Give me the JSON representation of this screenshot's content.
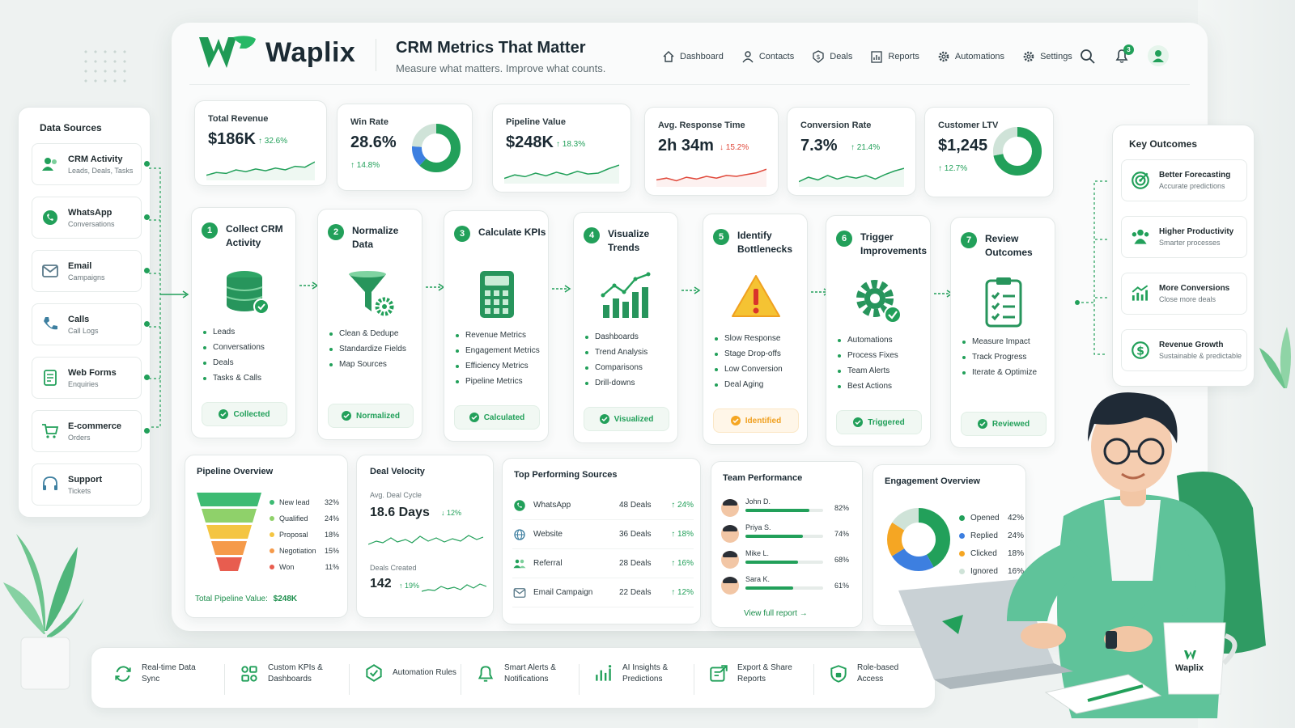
{
  "colors": {
    "accent": "#22a05a",
    "down": "#e0493b",
    "warn": "#f5a623"
  },
  "header": {
    "brand": "Waplix",
    "title": "CRM Metrics That Matter",
    "subtitle": "Measure what matters. Improve what counts.",
    "nav": [
      {
        "label": "Dashboard",
        "icon": "home-icon"
      },
      {
        "label": "Contacts",
        "icon": "user-icon"
      },
      {
        "label": "Deals",
        "icon": "dollar-icon"
      },
      {
        "label": "Reports",
        "icon": "report-icon"
      },
      {
        "label": "Automations",
        "icon": "gear-icon"
      },
      {
        "label": "Settings",
        "icon": "settings-icon"
      }
    ],
    "notification_count": "3"
  },
  "data_sources": {
    "title": "Data Sources",
    "items": [
      {
        "title": "CRM Activity",
        "sub": "Leads, Deals, Tasks",
        "icon": "people-icon"
      },
      {
        "title": "WhatsApp",
        "sub": "Conversations",
        "icon": "whatsapp-icon"
      },
      {
        "title": "Email",
        "sub": "Campaigns",
        "icon": "mail-icon"
      },
      {
        "title": "Calls",
        "sub": "Call Logs",
        "icon": "phone-icon"
      },
      {
        "title": "Web Forms",
        "sub": "Enquiries",
        "icon": "form-icon"
      },
      {
        "title": "E-commerce",
        "sub": "Orders",
        "icon": "cart-icon"
      },
      {
        "title": "Support",
        "sub": "Tickets",
        "icon": "headset-icon"
      }
    ]
  },
  "kpis": [
    {
      "label": "Total Revenue",
      "value": "$186K",
      "change": "↑ 32.6%",
      "dir": "up",
      "chart": "sparkline"
    },
    {
      "label": "Win Rate",
      "value": "28.6%",
      "change": "↑ 14.8%",
      "dir": "up",
      "chart": "donut",
      "donut": [
        0.62,
        0.14,
        0.24
      ]
    },
    {
      "label": "Pipeline Value",
      "value": "$248K",
      "change": "↑ 18.3%",
      "dir": "up",
      "chart": "sparkline"
    },
    {
      "label": "Avg. Response Time",
      "value": "2h 34m",
      "change": "↓ 15.2%",
      "dir": "down",
      "chart": "sparkline"
    },
    {
      "label": "Conversion Rate",
      "value": "7.3%",
      "change": "↑ 21.4%",
      "dir": "up",
      "chart": "sparkline"
    },
    {
      "label": "Customer LTV",
      "value": "$1,245",
      "change": "↑ 12.7%",
      "dir": "up",
      "chart": "donut",
      "donut": [
        0.72,
        0.0,
        0.28
      ]
    }
  ],
  "steps": [
    {
      "num": "1",
      "title": "Collect CRM Activity",
      "icon": "database-icon",
      "items": [
        "Leads",
        "Conversations",
        "Deals",
        "Tasks & Calls"
      ],
      "badge": "Collected",
      "warn": false
    },
    {
      "num": "2",
      "title": "Normalize Data",
      "icon": "funnel-gear-icon",
      "items": [
        "Clean & Dedupe",
        "Standardize Fields",
        "Map Sources"
      ],
      "badge": "Normalized",
      "warn": false
    },
    {
      "num": "3",
      "title": "Calculate KPIs",
      "icon": "calculator-icon",
      "items": [
        "Revenue Metrics",
        "Engagement Metrics",
        "Efficiency Metrics",
        "Pipeline Metrics"
      ],
      "badge": "Calculated",
      "warn": false
    },
    {
      "num": "4",
      "title": "Visualize Trends",
      "icon": "trend-chart-icon",
      "items": [
        "Dashboards",
        "Trend Analysis",
        "Comparisons",
        "Drill-downs"
      ],
      "badge": "Visualized",
      "warn": false
    },
    {
      "num": "5",
      "title": "Identify Bottlenecks",
      "icon": "warning-icon",
      "items": [
        "Slow Response",
        "Stage Drop-offs",
        "Low Conversion",
        "Deal Aging"
      ],
      "badge": "Identified",
      "warn": true
    },
    {
      "num": "6",
      "title": "Trigger Improvements",
      "icon": "gear-check-icon",
      "items": [
        "Automations",
        "Process Fixes",
        "Team Alerts",
        "Best Actions"
      ],
      "badge": "Triggered",
      "warn": false
    },
    {
      "num": "7",
      "title": "Review Outcomes",
      "icon": "clipboard-icon",
      "items": [
        "Measure Impact",
        "Track Progress",
        "Iterate & Optimize"
      ],
      "badge": "Reviewed",
      "warn": false
    }
  ],
  "outcomes": {
    "title": "Key Outcomes",
    "items": [
      {
        "title": "Better Forecasting",
        "sub": "Accurate predictions",
        "icon": "target-icon"
      },
      {
        "title": "Higher Productivity",
        "sub": "Smarter processes",
        "icon": "team-icon"
      },
      {
        "title": "More Conversions",
        "sub": "Close more deals",
        "icon": "growth-icon"
      },
      {
        "title": "Revenue Growth",
        "sub": "Sustainable & predictable",
        "icon": "dollar-coin-icon"
      }
    ]
  },
  "pipeline": {
    "title": "Pipeline Overview",
    "stages": [
      {
        "label": "New lead",
        "pct": "32%",
        "color": "#3dbb73"
      },
      {
        "label": "Qualified",
        "pct": "24%",
        "color": "#8fd16a"
      },
      {
        "label": "Proposal",
        "pct": "18%",
        "color": "#f4c542"
      },
      {
        "label": "Negotiation",
        "pct": "15%",
        "color": "#f59a4a"
      },
      {
        "label": "Won",
        "pct": "11%",
        "color": "#e85d4f"
      }
    ],
    "total_label": "Total Pipeline Value:",
    "total": "$248K"
  },
  "velocity": {
    "title": "Deal Velocity",
    "cycle_label": "Avg. Deal Cycle",
    "cycle": "18.6 Days",
    "cycle_change": "↓ 12%",
    "created_label": "Deals Created",
    "created": "142",
    "created_change": "↑ 19%"
  },
  "sources": {
    "title": "Top Performing Sources",
    "rows": [
      {
        "name": "WhatsApp",
        "deals": "48 Deals",
        "change": "↑ 24%",
        "icon": "whatsapp-icon"
      },
      {
        "name": "Website",
        "deals": "36 Deals",
        "change": "↑ 18%",
        "icon": "globe-icon"
      },
      {
        "name": "Referral",
        "deals": "28 Deals",
        "change": "↑ 16%",
        "icon": "referral-icon"
      },
      {
        "name": "Email Campaign",
        "deals": "22 Deals",
        "change": "↑ 12%",
        "icon": "mail-icon"
      }
    ]
  },
  "team": {
    "title": "Team Performance",
    "members": [
      {
        "name": "John D.",
        "pct": "82%",
        "value": 0.82
      },
      {
        "name": "Priya S.",
        "pct": "74%",
        "value": 0.74
      },
      {
        "name": "Mike L.",
        "pct": "68%",
        "value": 0.68
      },
      {
        "name": "Sara K.",
        "pct": "61%",
        "value": 0.61
      }
    ],
    "link": "View full report"
  },
  "engagement": {
    "title": "Engagement Overview",
    "items": [
      {
        "label": "Opened",
        "pct": "42%",
        "value": 42,
        "color": "#22a05a"
      },
      {
        "label": "Replied",
        "pct": "24%",
        "value": 24,
        "color": "#3d7fe0"
      },
      {
        "label": "Clicked",
        "pct": "18%",
        "value": 18,
        "color": "#f5a623"
      },
      {
        "label": "Ignored",
        "pct": "16%",
        "value": 16,
        "color": "#cfe3d8"
      }
    ]
  },
  "features": [
    {
      "label": "Real-time Data Sync",
      "icon": "sync-icon"
    },
    {
      "label": "Custom KPIs & Dashboards",
      "icon": "dashboard-icon"
    },
    {
      "label": "Automation Rules",
      "icon": "automation-icon"
    },
    {
      "label": "Smart Alerts & Notifications",
      "icon": "bell-icon"
    },
    {
      "label": "AI Insights & Predictions",
      "icon": "ai-icon"
    },
    {
      "label": "Export & Share Reports",
      "icon": "export-icon"
    },
    {
      "label": "Role-based Access",
      "icon": "shield-icon"
    }
  ],
  "mug_brand": "Waplix"
}
